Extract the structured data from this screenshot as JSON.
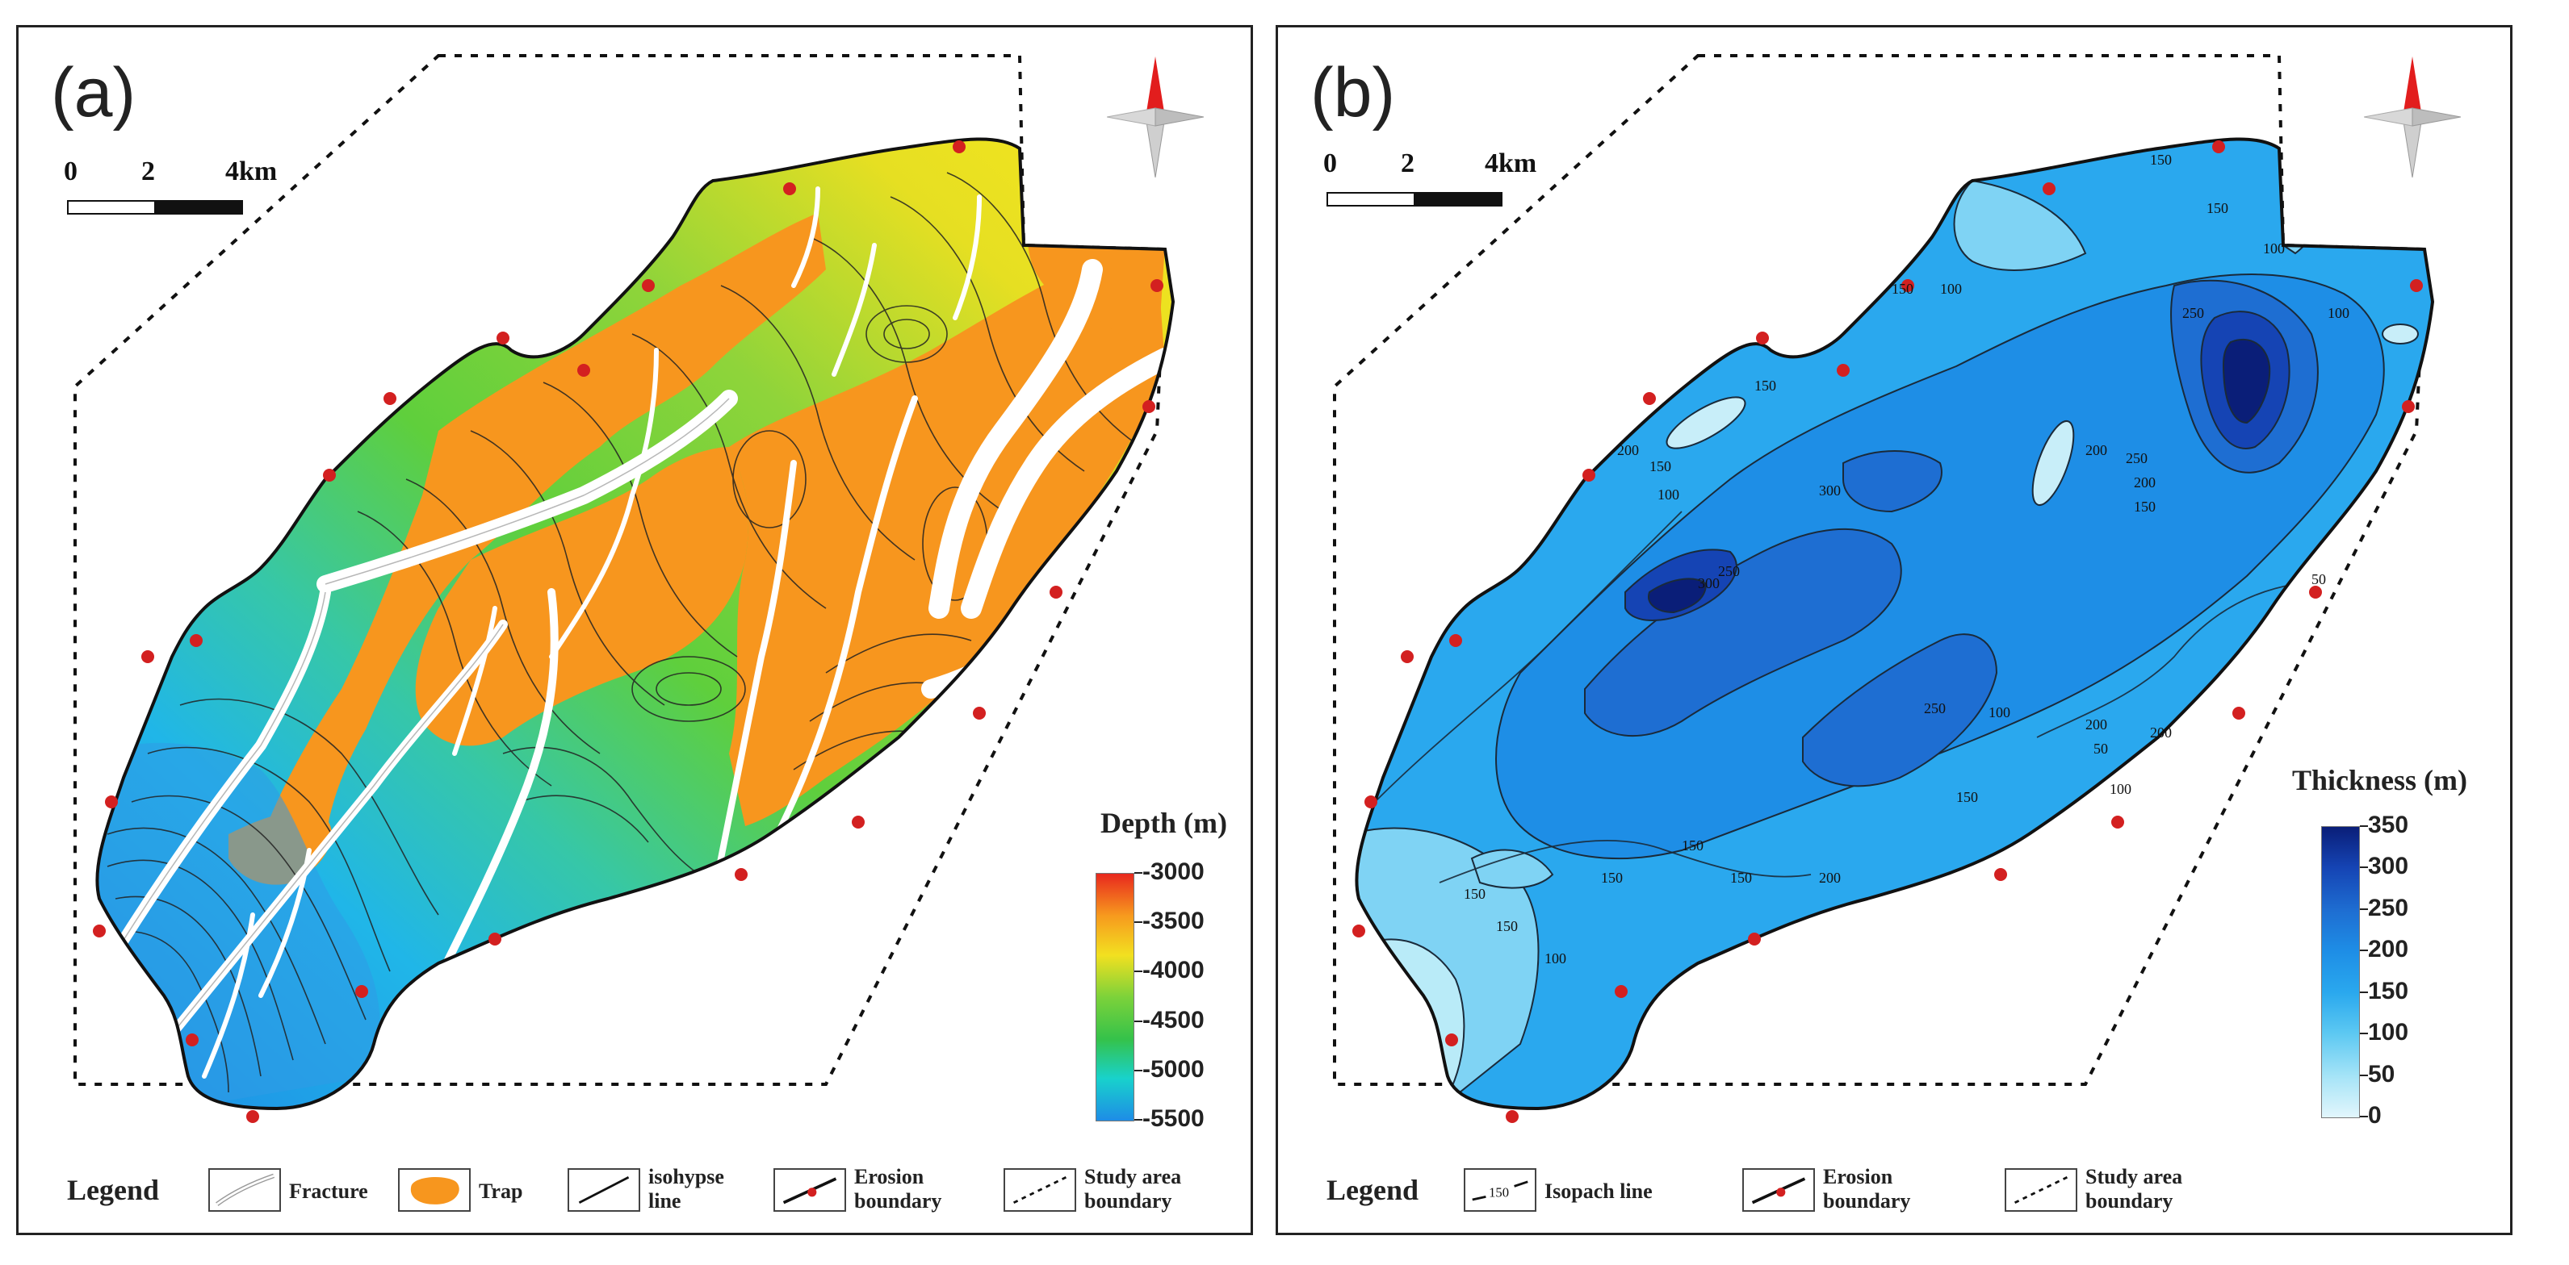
{
  "panel_a": {
    "tag": "(a)",
    "scale": {
      "labels": [
        "0",
        "2",
        "4km"
      ]
    },
    "colorbar": {
      "title": "Depth (m)",
      "ticks": [
        "-3000",
        "-3500",
        "-4000",
        "-4500",
        "-5000",
        "-5500"
      ],
      "colors": [
        "#e8281e",
        "#f79a1e",
        "#f2e020",
        "#7cd23a",
        "#35c24a",
        "#18d2cc",
        "#1e8ce6"
      ]
    },
    "legend": {
      "title": "Legend",
      "items": [
        {
          "label": "Fracture"
        },
        {
          "label": "Trap"
        },
        {
          "label": "isohypse\nline"
        },
        {
          "label": "Erosion\nboundary"
        },
        {
          "label": "Study area\nboundary"
        }
      ]
    }
  },
  "panel_b": {
    "tag": "(b)",
    "scale": {
      "labels": [
        "0",
        "2",
        "4km"
      ]
    },
    "colorbar": {
      "title": "Thickness (m)",
      "ticks": [
        "350",
        "300",
        "250",
        "200",
        "150",
        "100",
        "50",
        "0"
      ],
      "colors": [
        "#0a1e78",
        "#1544b4",
        "#1e6ed2",
        "#1e8ee6",
        "#2aa8ee",
        "#5cc8f2",
        "#a6e4f7",
        "#e2f6fc"
      ]
    },
    "contour_labels": [
      "150",
      "150",
      "150",
      "100",
      "100",
      "150",
      "300",
      "250",
      "200",
      "150",
      "100",
      "200",
      "250",
      "200",
      "150",
      "100",
      "50",
      "300",
      "250",
      "250",
      "100",
      "200",
      "200",
      "50",
      "100",
      "150",
      "150",
      "150",
      "150",
      "200",
      "150",
      "100",
      "150"
    ],
    "legend": {
      "title": "Legend",
      "items": [
        {
          "label": "Isopach line",
          "sample": "150"
        },
        {
          "label": "Erosion\nboundary"
        },
        {
          "label": "Study area\nboundary"
        }
      ]
    }
  },
  "colors": {
    "trap": "#f7961e",
    "erosion_dot": "#d32020",
    "compass_red": "#e21d1d",
    "outline": "#111111"
  }
}
